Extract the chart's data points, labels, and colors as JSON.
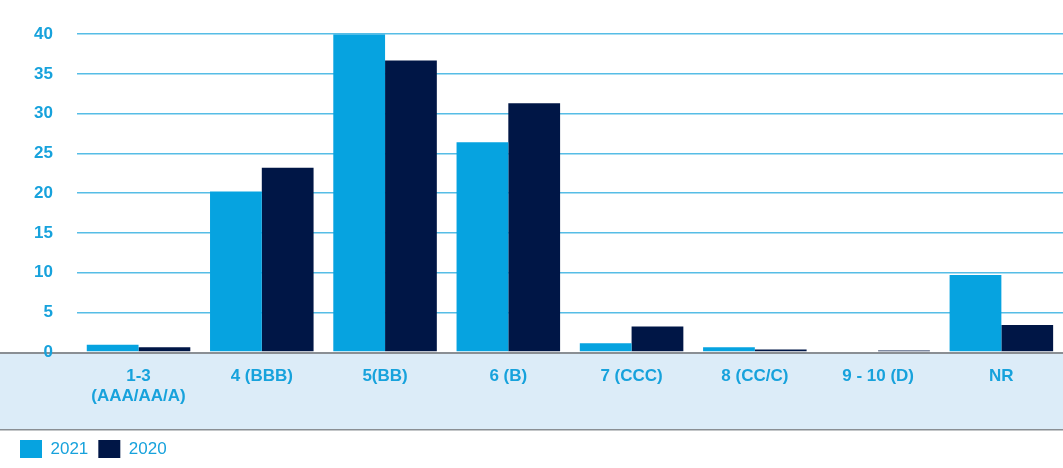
{
  "chart_data": {
    "type": "bar",
    "categories": [
      "1-3 (AAA/AA/A)",
      "4 (BBB)",
      "5(BB)",
      "6 (B)",
      "7 (CCC)",
      "8 (CC/C)",
      "9 - 10 (D)",
      "NR"
    ],
    "series": [
      {
        "name": "2021",
        "color": "#06a3e0",
        "values": [
          0.9,
          20.2,
          40,
          26.4,
          1.1,
          0.6,
          null,
          9.7
        ]
      },
      {
        "name": "2020",
        "color": "#001646",
        "values": [
          0.6,
          23.2,
          36.7,
          31.3,
          3.2,
          0.3,
          0.2,
          3.4
        ]
      }
    ],
    "ylim": [
      0,
      40
    ],
    "yticks": [
      0,
      5,
      10,
      15,
      20,
      25,
      30,
      35,
      40
    ],
    "grid": "y",
    "legend": "bottom left"
  }
}
